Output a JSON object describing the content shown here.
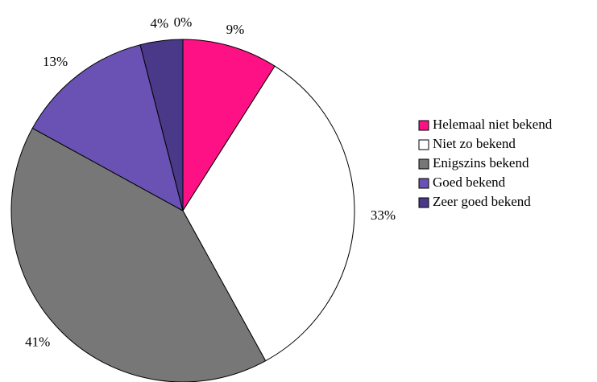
{
  "chart_data": {
    "type": "pie",
    "categories": [
      "Helemaal niet bekend",
      "Niet zo bekend",
      "Enigszins bekend",
      "Goed bekend",
      "Zeer goed bekend",
      null
    ],
    "values": [
      9,
      33,
      41,
      13,
      4,
      0
    ],
    "value_labels": [
      "9%",
      "33%",
      "41%",
      "13%",
      "4%",
      "0%"
    ],
    "colors": [
      "#ff1186",
      "#ffffff",
      "#777777",
      "#6a52b5",
      "#4a3889",
      "#2a2060"
    ],
    "legend": "right"
  }
}
